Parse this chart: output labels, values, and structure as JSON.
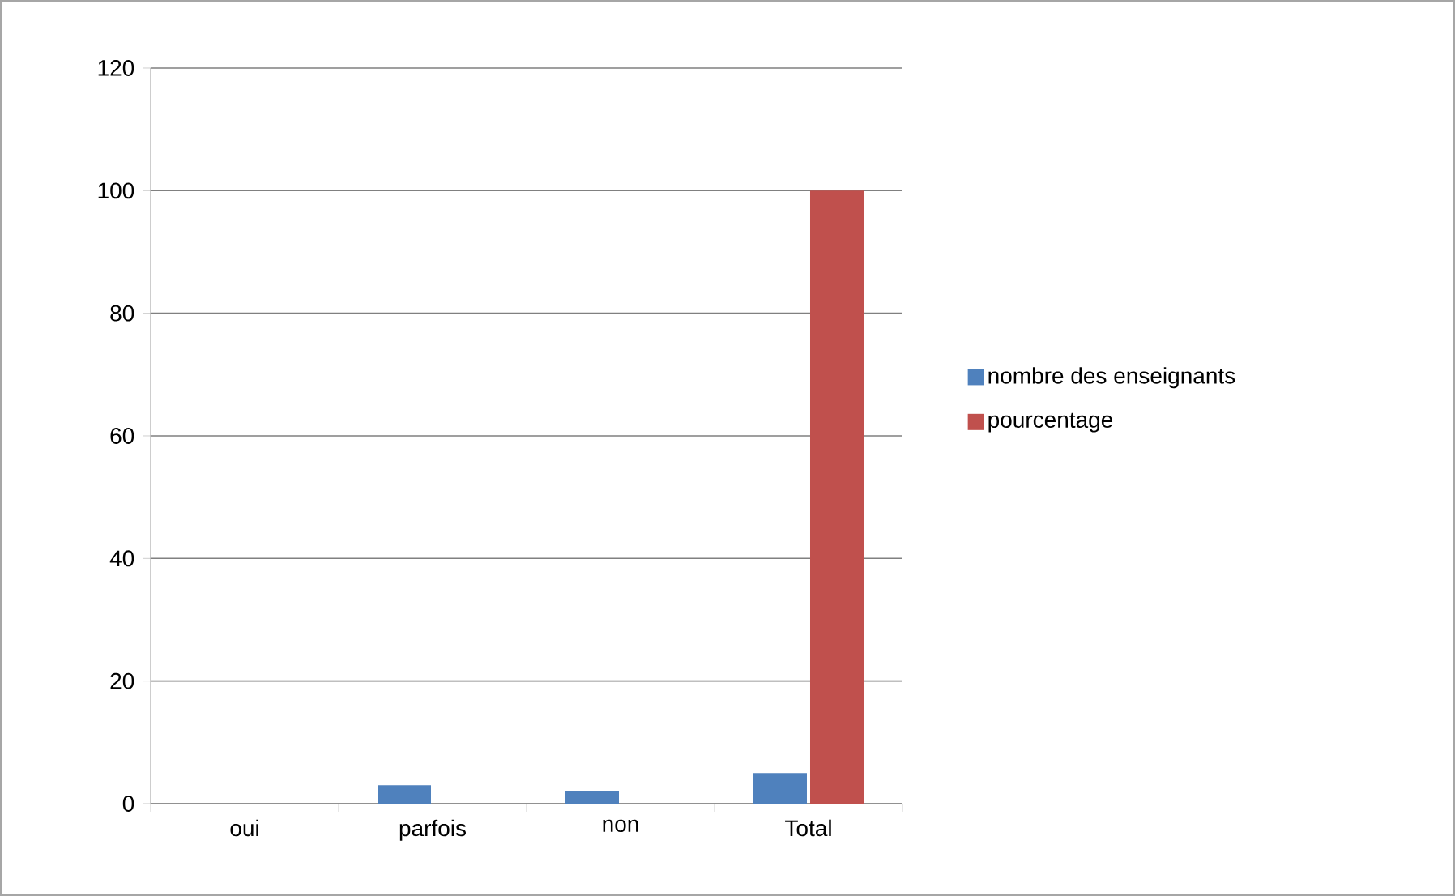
{
  "chart_data": {
    "type": "bar",
    "categories": [
      "oui",
      "parfois",
      "non",
      "Total"
    ],
    "series": [
      {
        "name": "nombre des enseignants",
        "color": "#4f81bd",
        "values": [
          0,
          3,
          2,
          5
        ]
      },
      {
        "name": "pourcentage",
        "color": "#c0504d",
        "values": [
          0,
          0,
          0,
          100
        ]
      }
    ],
    "ylim": [
      0,
      120
    ],
    "yticks": [
      0,
      20,
      40,
      60,
      80,
      100,
      120
    ],
    "grid": "y",
    "legend": "right"
  }
}
